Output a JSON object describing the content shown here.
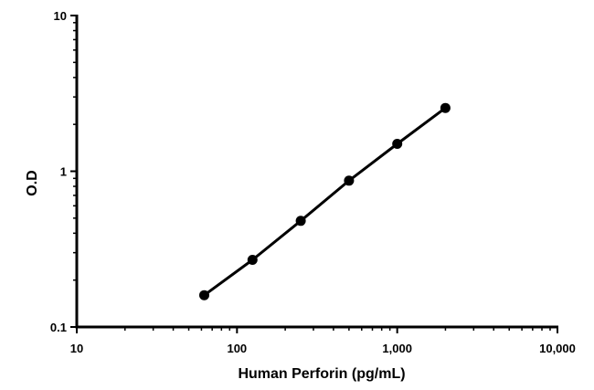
{
  "chart_data": {
    "type": "scatter",
    "title": "",
    "xlabel": "Human Perforin (pg/mL)",
    "ylabel": "O.D",
    "x_scale": "log",
    "y_scale": "log",
    "xlim": [
      10,
      10000
    ],
    "ylim": [
      0.1,
      10
    ],
    "x_ticks": [
      10,
      100,
      1000,
      10000
    ],
    "x_tick_labels": [
      "10",
      "100",
      "1,000",
      "10,000"
    ],
    "y_ticks": [
      0.1,
      1,
      10
    ],
    "y_tick_labels": [
      "0.1",
      "1",
      "10"
    ],
    "grid": false,
    "legend": "none",
    "line_connected": true,
    "series_color": "#000000",
    "series": [
      {
        "x": [
          62.5,
          125,
          250,
          500,
          1000,
          2000
        ],
        "y": [
          0.16,
          0.27,
          0.48,
          0.87,
          1.5,
          2.55
        ]
      }
    ]
  }
}
